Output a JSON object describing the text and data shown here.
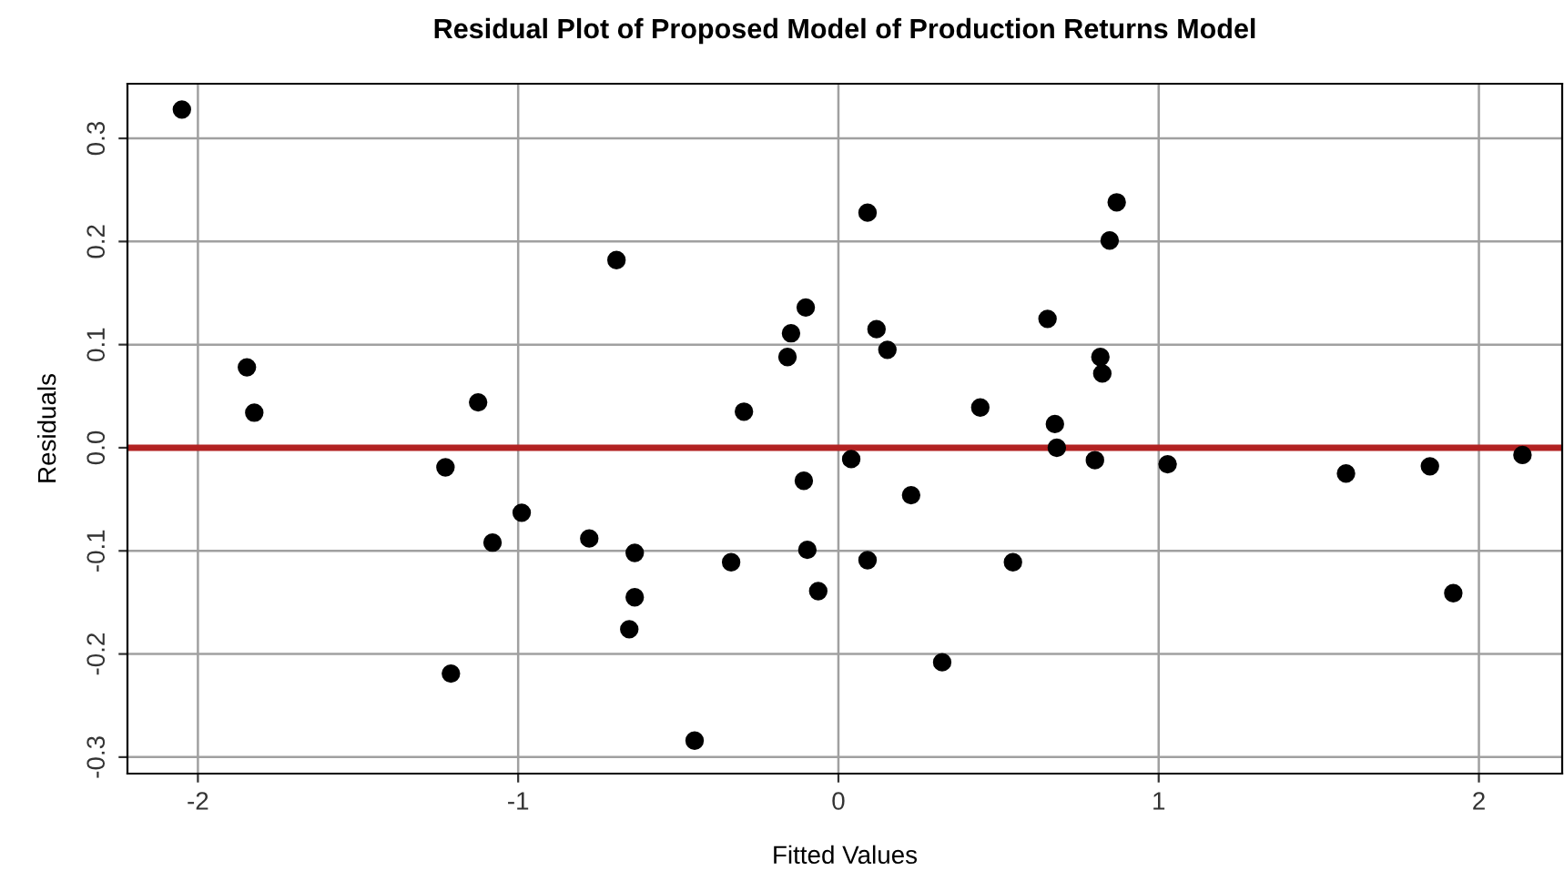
{
  "chart_data": {
    "type": "scatter",
    "title": "Residual Plot of Proposed Model of Production Returns Model",
    "xlabel": "Fitted Values",
    "ylabel": "Residuals",
    "x": [
      -2.05,
      -1.847,
      -1.824,
      -1.227,
      -1.21,
      -1.125,
      -1.08,
      -0.989,
      -0.778,
      -0.693,
      -0.636,
      -0.636,
      -0.653,
      -0.449,
      -0.335,
      -0.295,
      -0.159,
      -0.148,
      -0.102,
      -0.108,
      -0.097,
      -0.063,
      0.04,
      0.091,
      0.091,
      0.119,
      0.153,
      0.227,
      0.324,
      0.443,
      0.545,
      0.653,
      0.676,
      0.682,
      0.801,
      0.818,
      0.824,
      0.847,
      0.869,
      1.028,
      1.585,
      1.847,
      1.92,
      2.136
    ],
    "series": [
      {
        "color": "#000000",
        "values": [
          0.328,
          0.078,
          0.034,
          -0.019,
          -0.219,
          0.044,
          -0.092,
          -0.063,
          -0.088,
          0.182,
          -0.102,
          -0.145,
          -0.176,
          -0.284,
          -0.111,
          0.035,
          0.088,
          0.111,
          0.136,
          -0.032,
          -0.099,
          -0.139,
          -0.011,
          0.228,
          -0.109,
          0.115,
          0.095,
          -0.046,
          -0.208,
          0.039,
          -0.111,
          0.125,
          0.023,
          0.0,
          -0.012,
          0.088,
          0.072,
          0.201,
          0.238,
          -0.016,
          -0.025,
          -0.018,
          -0.141,
          -0.007
        ]
      }
    ],
    "xlim": [
      -2.22,
      2.26
    ],
    "ylim": [
      -0.316,
      0.353
    ],
    "xticks": [
      -2,
      -1,
      0,
      1,
      2
    ],
    "yticks": [
      {
        "value": -0.3,
        "label": "-0.3"
      },
      {
        "value": -0.2,
        "label": "-0.2"
      },
      {
        "value": -0.1,
        "label": "-0.1"
      },
      {
        "value": 0,
        "label": "0.0"
      },
      {
        "value": 0.1,
        "label": "0.1"
      },
      {
        "value": 0.2,
        "label": "0.2"
      },
      {
        "value": 0.3,
        "label": "0.3"
      }
    ],
    "grid": true,
    "marker": "circle",
    "legend": false,
    "ref_lines": [
      {
        "axis": "y",
        "value": 0,
        "color": "#b22222",
        "line_style": "solid"
      }
    ]
  }
}
